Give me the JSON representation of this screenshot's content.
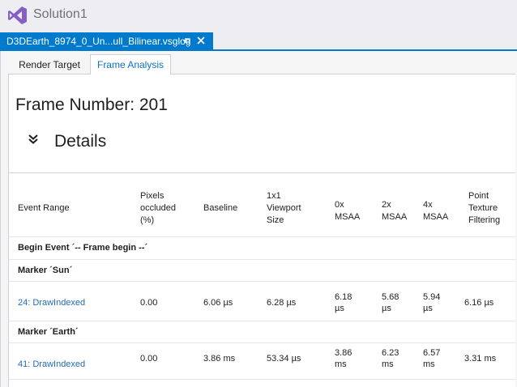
{
  "window": {
    "title": "Solution1",
    "logo_icon": "visual-studio-icon"
  },
  "document_tab": {
    "label": "D3DEarth_8974_0_Un...ull_Bilinear.vsglog",
    "pin_icon": "pin-icon",
    "close_icon": "close-icon",
    "accent_color": "#007acc"
  },
  "inner_tabs": [
    {
      "label": "Render Target",
      "selected": false
    },
    {
      "label": "Frame Analysis",
      "selected": true
    }
  ],
  "frame_number": "Frame Number: 201",
  "details": {
    "label": "Details",
    "toggle_icon": "double-chevron-down-icon"
  },
  "table": {
    "headers": {
      "event_range": "Event Range",
      "pixels_occluded": [
        "Pixels",
        "occluded",
        "(%)"
      ],
      "baseline": "Baseline",
      "viewport": [
        "1x1",
        "Viewport",
        "Size"
      ],
      "msaa0": [
        "0x",
        "MSAA"
      ],
      "msaa2": [
        "2x",
        "MSAA"
      ],
      "msaa4": [
        "4x",
        "MSAA"
      ],
      "point": [
        "Point",
        "Texture",
        "Filtering"
      ]
    },
    "groups": [
      {
        "label": "Begin Event ´-- Frame begin --´"
      },
      {
        "label": "Marker ´Sun´",
        "row": {
          "event": "24: DrawIndexed",
          "pixels": "0.00",
          "baseline": "6.06 µs",
          "viewport": "6.28 µs",
          "msaa0": [
            "6.18",
            "µs"
          ],
          "msaa2": [
            "5.68",
            "µs"
          ],
          "msaa4": [
            "5.94",
            "µs"
          ],
          "point": "6.16 µs"
        }
      },
      {
        "label": "Marker ´Earth´",
        "row": {
          "event": "41: DrawIndexed",
          "pixels": "0.00",
          "baseline": "3.86 ms",
          "viewport": "53.34 µs",
          "msaa0": [
            "3.86",
            "ms"
          ],
          "msaa2": [
            "6.23",
            "ms"
          ],
          "msaa4": [
            "6.57",
            "ms"
          ],
          "point": "3.31 ms"
        }
      }
    ]
  }
}
